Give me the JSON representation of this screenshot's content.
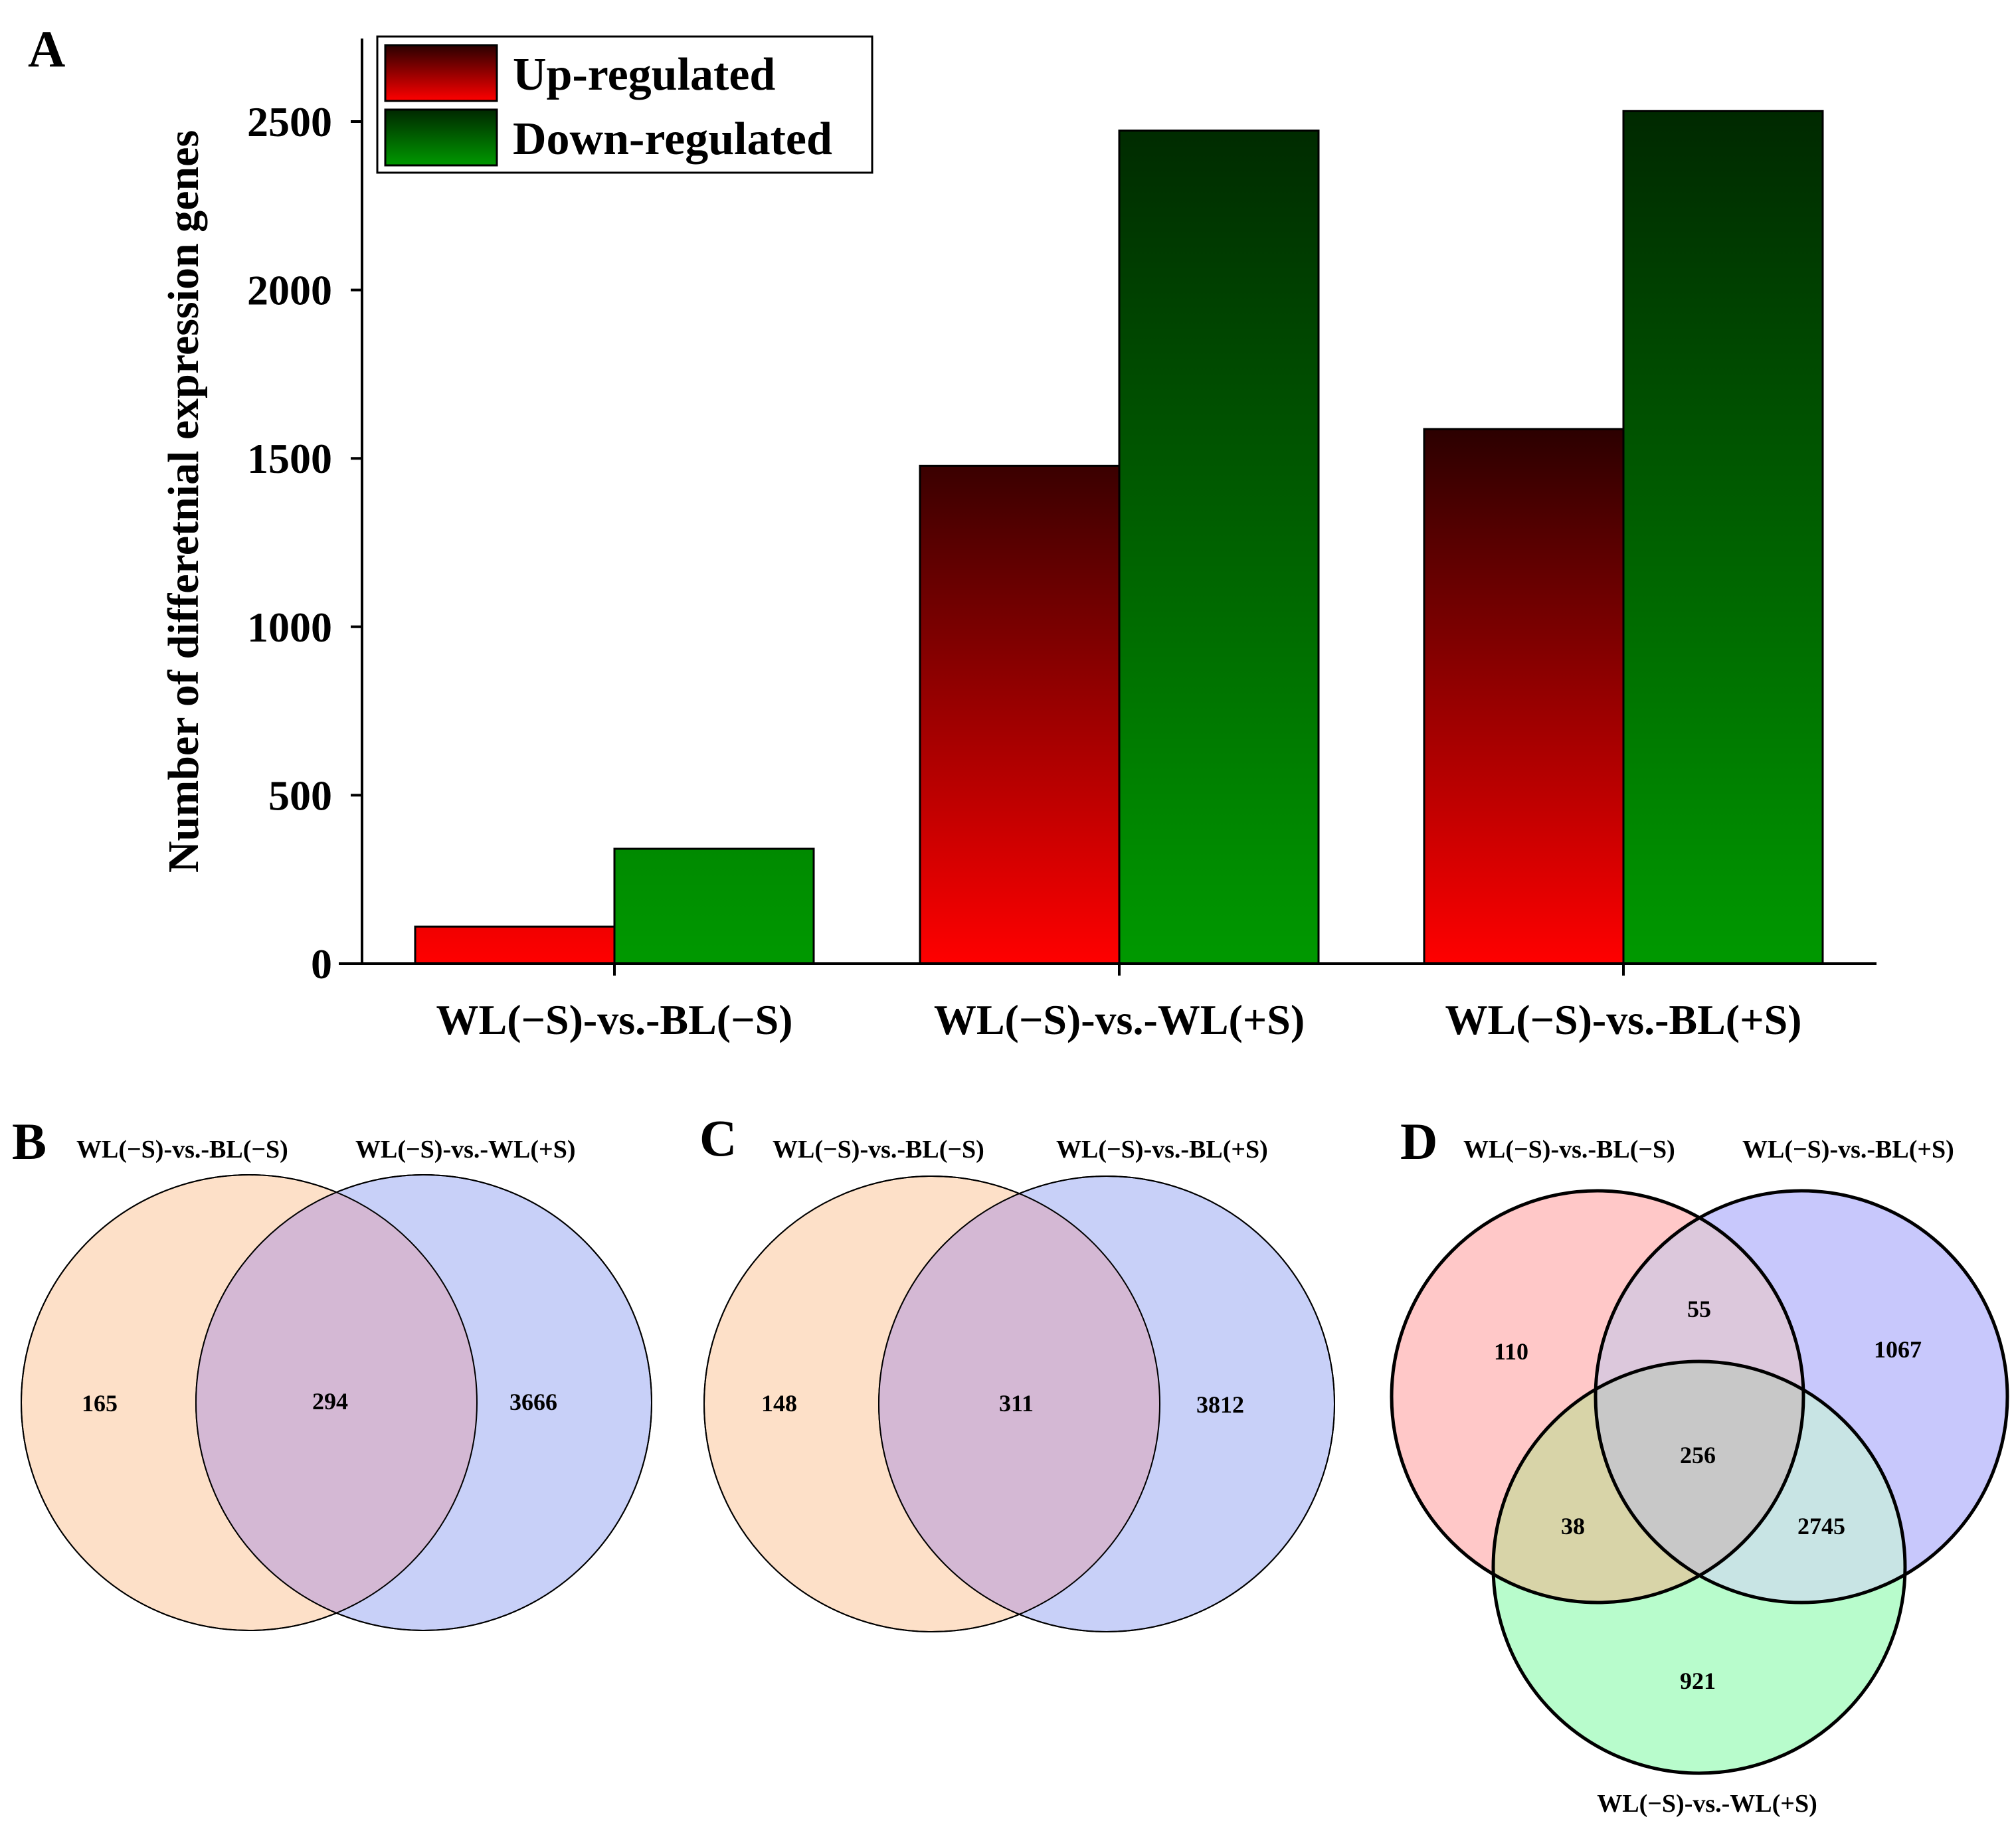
{
  "panels": {
    "a": {
      "letter": "A"
    },
    "b": {
      "letter": "B"
    },
    "c": {
      "letter": "C"
    },
    "d": {
      "letter": "D"
    }
  },
  "chart_data": {
    "type": "bar",
    "ylabel": "Number of differetnial expression genes",
    "xlabel": "",
    "ylim": [
      0,
      2750
    ],
    "yticks": [
      0,
      500,
      1000,
      1500,
      2000,
      2500
    ],
    "yticks_text": [
      "0",
      "500",
      "1000",
      "1500",
      "2000",
      "2500"
    ],
    "categories": [
      "WL(−S)-vs.-BL(−S)",
      "WL(−S)-vs.-WL(+S)",
      "WL(−S)-vs.-BL(+S)"
    ],
    "series": [
      {
        "name": "Up-regulated",
        "values": [
          110,
          1478,
          1587
        ]
      },
      {
        "name": "Down-regulated",
        "values": [
          341,
          2473,
          2531
        ]
      }
    ],
    "legend": [
      "Up-regulated",
      "Down-regulated"
    ],
    "legend_position": "top-left"
  },
  "colors": {
    "up_bottom": "#ff0000",
    "up_top": "#2a0000",
    "down_bottom": "#009900",
    "down_top": "#002800",
    "venn_peach": "#fde0c8",
    "venn_blue": "#c8d0f8",
    "venn_overlap": "#d4b8d4",
    "venn_pink": "#ffc8c8",
    "venn_green": "#b8fccc"
  },
  "venn_b": {
    "labels": {
      "left": "WL(−S)-vs.-BL(−S)",
      "right": "WL(−S)-vs.-WL(+S)"
    },
    "counts": {
      "left_only": "165",
      "overlap": "294",
      "right_only": "3666"
    }
  },
  "venn_c": {
    "labels": {
      "left": "WL(−S)-vs.-BL(−S)",
      "right": "WL(−S)-vs.-BL(+S)"
    },
    "counts": {
      "left_only": "148",
      "overlap": "311",
      "right_only": "3812"
    }
  },
  "venn_d": {
    "labels": {
      "top_left": "WL(−S)-vs.-BL(−S)",
      "top_right": "WL(−S)-vs.-BL(+S)",
      "bottom": "WL(−S)-vs.-WL(+S)"
    },
    "counts": {
      "a_only": "110",
      "b_only": "1067",
      "c_only": "921",
      "ab": "55",
      "ac": "38",
      "bc": "2745",
      "abc": "256"
    }
  }
}
